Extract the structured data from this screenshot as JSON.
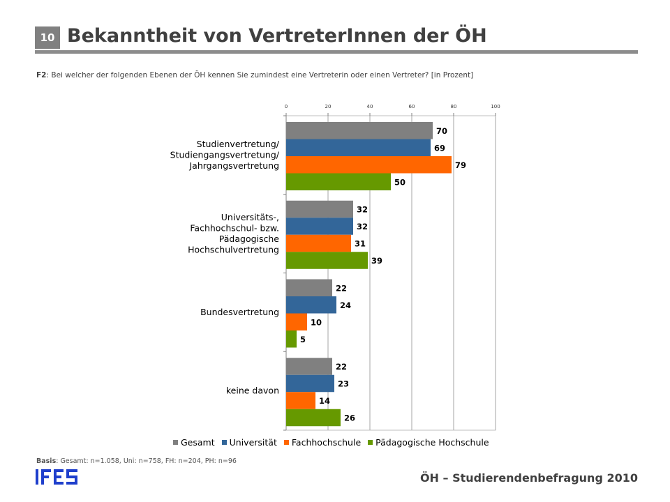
{
  "header": {
    "slide_number": "10",
    "title": "Bekanntheit von VertreterInnen der ÖH"
  },
  "question": {
    "code": "F2",
    "text": ": Bei welcher der folgenden Ebenen der ÖH kennen Sie zumindest eine Vertreterin oder einen Vertreter? [in Prozent]"
  },
  "basis": {
    "label": "Basis",
    "text": ": Gesamt: n=1.058, Uni: n=758, FH: n=204, PH: n=96"
  },
  "footer": {
    "logo": "IFES",
    "text": "ÖH – Studierendenbefragung 2010"
  },
  "chart_data": {
    "type": "bar",
    "orientation": "horizontal",
    "categories": [
      [
        "Studienvertretung/",
        "Studiengangsvertretung/",
        "Jahrgangsvertretung"
      ],
      [
        "Universitäts-,",
        "Fachhochschul- bzw.",
        "Pädagogische",
        "Hochschulvertretung"
      ],
      [
        "Bundesvertretung"
      ],
      [
        "keine davon"
      ]
    ],
    "series": [
      {
        "name": "Gesamt",
        "color": "#808080",
        "values": [
          70,
          32,
          22,
          22
        ]
      },
      {
        "name": "Universität",
        "color": "#336699",
        "values": [
          69,
          32,
          24,
          23
        ]
      },
      {
        "name": "Fachhochschule",
        "color": "#ff6600",
        "values": [
          79,
          31,
          10,
          14
        ]
      },
      {
        "name": "Pädagogische Hochschule",
        "color": "#669900",
        "values": [
          50,
          39,
          5,
          26
        ]
      }
    ],
    "xlim": [
      0,
      100
    ],
    "xticks": [
      0,
      20,
      40,
      60,
      80,
      100
    ],
    "grid": true,
    "legend_position": "bottom"
  }
}
